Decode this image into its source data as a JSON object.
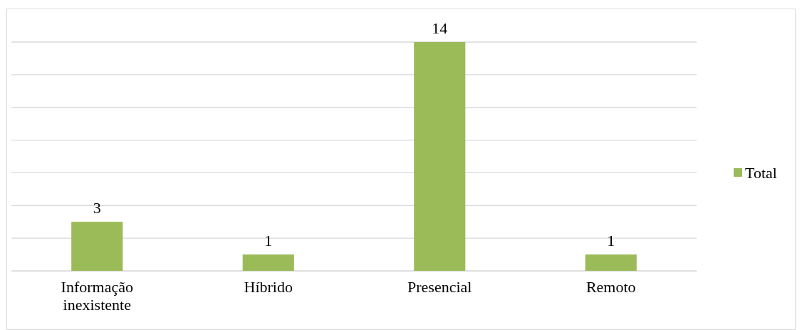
{
  "chart_data": {
    "type": "bar",
    "categories": [
      "Informação inexistente",
      "Híbrido",
      "Presencial",
      "Remoto"
    ],
    "series": [
      {
        "name": "Total",
        "color": "#9bbb59",
        "values": [
          3,
          1,
          14,
          1
        ]
      }
    ],
    "ylim": [
      0,
      14
    ],
    "yticks": [
      {
        "value": 0,
        "label": null
      },
      {
        "value": 2,
        "label": null
      },
      {
        "value": 4,
        "label": null
      },
      {
        "value": 6,
        "label": null
      },
      {
        "value": 8,
        "label": null
      },
      {
        "value": 10,
        "label": null
      },
      {
        "value": 12,
        "label": null
      },
      {
        "value": 14,
        "label": null
      }
    ],
    "tick_labels": "x",
    "grid": "y",
    "data_labels": true,
    "legend": "right"
  }
}
